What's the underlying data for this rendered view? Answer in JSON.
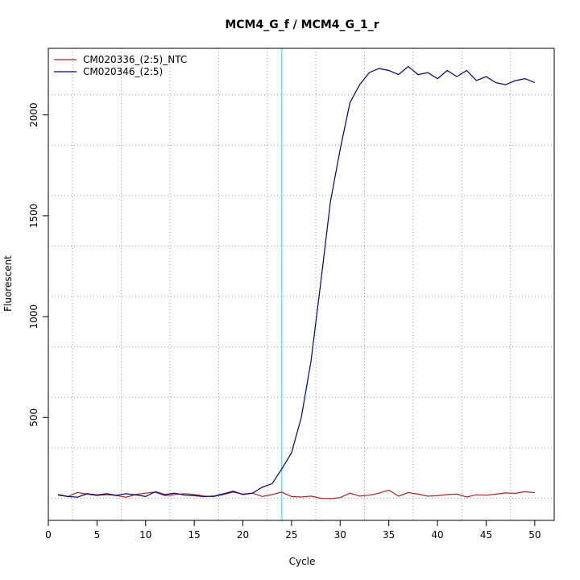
{
  "chart_data": {
    "type": "line",
    "title": "MCM4_G_f / MCM4_G_1_r",
    "xlabel": "Cycle",
    "ylabel": "Fluorescent",
    "xlim": [
      0,
      52
    ],
    "ylim": [
      -10,
      2330
    ],
    "x_ticks": [
      0,
      5,
      10,
      15,
      20,
      25,
      30,
      35,
      40,
      45,
      50
    ],
    "y_ticks": [
      500,
      1000,
      1500,
      2000
    ],
    "grid": true,
    "legend_position": "top-left",
    "threshold_x": 24,
    "threshold_color": "#00e5ee",
    "x": [
      1,
      2,
      3,
      4,
      5,
      6,
      7,
      8,
      9,
      10,
      11,
      12,
      13,
      14,
      15,
      16,
      17,
      18,
      19,
      20,
      21,
      22,
      23,
      24,
      25,
      26,
      27,
      28,
      29,
      30,
      31,
      32,
      33,
      34,
      35,
      36,
      37,
      38,
      39,
      40,
      41,
      42,
      43,
      44,
      45,
      46,
      47,
      48,
      49,
      50
    ],
    "series": [
      {
        "name": "CM020336_(2:5)_NTC",
        "color": "#b22222",
        "values": [
          115,
          108,
          128,
          120,
          113,
          118,
          113,
          105,
          118,
          125,
          130,
          112,
          118,
          122,
          118,
          110,
          108,
          118,
          130,
          120,
          125,
          108,
          118,
          130,
          108,
          106,
          110,
          100,
          98,
          103,
          125,
          110,
          115,
          125,
          140,
          110,
          128,
          120,
          110,
          112,
          118,
          120,
          106,
          117,
          115,
          120,
          126,
          124,
          132,
          127
        ]
      },
      {
        "name": "CM020346_(2:5)",
        "color": "#000080",
        "values": [
          118,
          108,
          105,
          122,
          116,
          122,
          114,
          122,
          116,
          108,
          132,
          118,
          125,
          115,
          112,
          108,
          110,
          122,
          135,
          118,
          125,
          155,
          172,
          245,
          325,
          500,
          780,
          1170,
          1570,
          1830,
          2060,
          2150,
          2210,
          2230,
          2220,
          2200,
          2240,
          2200,
          2210,
          2180,
          2220,
          2190,
          2220,
          2170,
          2190,
          2160,
          2150,
          2170,
          2180,
          2160
        ]
      }
    ]
  }
}
